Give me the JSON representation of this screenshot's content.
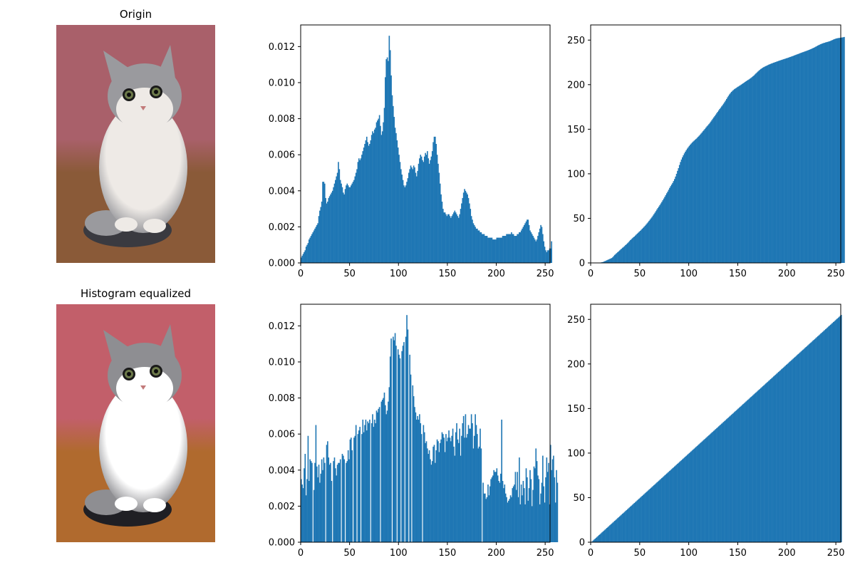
{
  "figure": {
    "images": [
      {
        "title": "Origin",
        "subject": "cat-photo"
      },
      {
        "title": "Histogram equalized",
        "subject": "cat-photo-equalized"
      }
    ],
    "bar_color": "#1f77b4",
    "palette": {
      "wall": "#a9606a",
      "floor": "#8a5a38",
      "fur_white": "#eeeae6",
      "fur_gray": "#9a9a9e",
      "fur_dark": "#3a3a40"
    },
    "palette_equalized": {
      "wall": "#c25f6a",
      "floor": "#b06a2e",
      "fur_white": "#ffffff",
      "fur_gray": "#8e8e92",
      "fur_dark": "#1f1f24"
    }
  },
  "chart_data": [
    {
      "type": "bar",
      "id": "hist-original",
      "title": "",
      "xlabel": "",
      "ylabel": "",
      "xlim": [
        0,
        255
      ],
      "ylim": [
        0,
        0.0132
      ],
      "xticks": [
        0,
        50,
        100,
        150,
        200,
        250
      ],
      "yticks": [
        0.0,
        0.002,
        0.004,
        0.006,
        0.008,
        0.01,
        0.012
      ],
      "ytick_labels": [
        "0.000",
        "0.002",
        "0.004",
        "0.006",
        "0.008",
        "0.010",
        "0.012"
      ],
      "grid": false,
      "bins": 256,
      "values": [
        0.0003,
        0.0004,
        0.0005,
        0.0006,
        0.0007,
        0.0009,
        0.001,
        0.0011,
        0.0013,
        0.0014,
        0.0015,
        0.0016,
        0.0017,
        0.0018,
        0.0019,
        0.002,
        0.0021,
        0.0022,
        0.0026,
        0.0029,
        0.0031,
        0.0034,
        0.0045,
        0.0045,
        0.0044,
        0.0036,
        0.0033,
        0.0034,
        0.0036,
        0.0037,
        0.0038,
        0.0039,
        0.004,
        0.0042,
        0.0044,
        0.0046,
        0.0048,
        0.005,
        0.0056,
        0.0052,
        0.0046,
        0.0044,
        0.0042,
        0.0039,
        0.0038,
        0.0041,
        0.0043,
        0.0044,
        0.0043,
        0.0042,
        0.0042,
        0.0043,
        0.0044,
        0.0045,
        0.0046,
        0.0048,
        0.005,
        0.0052,
        0.0056,
        0.0058,
        0.0057,
        0.0058,
        0.006,
        0.0062,
        0.0064,
        0.0066,
        0.0068,
        0.007,
        0.0067,
        0.0065,
        0.0066,
        0.0068,
        0.0071,
        0.0073,
        0.0072,
        0.0074,
        0.0075,
        0.0078,
        0.0079,
        0.008,
        0.0082,
        0.0076,
        0.0071,
        0.0073,
        0.0078,
        0.0086,
        0.0103,
        0.0113,
        0.0114,
        0.0112,
        0.0126,
        0.0118,
        0.0104,
        0.0093,
        0.0087,
        0.0081,
        0.0075,
        0.0072,
        0.0068,
        0.0064,
        0.006,
        0.0056,
        0.0052,
        0.0049,
        0.0046,
        0.0043,
        0.0042,
        0.0043,
        0.0045,
        0.0047,
        0.005,
        0.0052,
        0.0054,
        0.0053,
        0.0052,
        0.0054,
        0.0053,
        0.005,
        0.0048,
        0.0051,
        0.0055,
        0.0058,
        0.006,
        0.0059,
        0.0057,
        0.0056,
        0.0059,
        0.0061,
        0.006,
        0.0062,
        0.0058,
        0.0055,
        0.0057,
        0.0059,
        0.0062,
        0.0067,
        0.007,
        0.007,
        0.0066,
        0.006,
        0.0055,
        0.005,
        0.0044,
        0.0038,
        0.0034,
        0.003,
        0.0028,
        0.0028,
        0.0027,
        0.0026,
        0.0027,
        0.0027,
        0.0026,
        0.0025,
        0.0026,
        0.0027,
        0.0028,
        0.0029,
        0.0028,
        0.0027,
        0.0026,
        0.0025,
        0.0027,
        0.003,
        0.0033,
        0.0036,
        0.0039,
        0.0041,
        0.004,
        0.0039,
        0.0038,
        0.0036,
        0.0033,
        0.003,
        0.0026,
        0.0024,
        0.0022,
        0.0021,
        0.002,
        0.0019,
        0.0019,
        0.0018,
        0.0018,
        0.0017,
        0.0017,
        0.0016,
        0.0016,
        0.0016,
        0.0015,
        0.0015,
        0.0015,
        0.0014,
        0.0014,
        0.0014,
        0.0014,
        0.0014,
        0.0013,
        0.0013,
        0.0013,
        0.0013,
        0.0014,
        0.0014,
        0.0014,
        0.0014,
        0.0014,
        0.0014,
        0.0015,
        0.0015,
        0.0015,
        0.0015,
        0.0016,
        0.0016,
        0.0016,
        0.0016,
        0.0016,
        0.0017,
        0.0016,
        0.0016,
        0.0015,
        0.0015,
        0.0015,
        0.0016,
        0.0016,
        0.0017,
        0.0017,
        0.0018,
        0.0019,
        0.002,
        0.0021,
        0.0022,
        0.0023,
        0.0024,
        0.0024,
        0.0021,
        0.0018,
        0.0017,
        0.0016,
        0.0015,
        0.0014,
        0.0013,
        0.0012,
        0.0013,
        0.0015,
        0.0017,
        0.0019,
        0.0021,
        0.002,
        0.0016,
        0.0012,
        0.0009,
        0.0007,
        0.0006,
        0.0007,
        0.0007,
        0.0008,
        0.0008,
        0.0012
      ]
    },
    {
      "type": "bar",
      "id": "cdf-original",
      "title": "",
      "xlabel": "",
      "ylabel": "",
      "xlim": [
        0,
        255
      ],
      "ylim": [
        0,
        267
      ],
      "xticks": [
        0,
        50,
        100,
        150,
        200,
        250
      ],
      "yticks": [
        0,
        50,
        100,
        150,
        200,
        250
      ],
      "ytick_labels": [
        "0",
        "50",
        "100",
        "150",
        "200",
        "250"
      ],
      "grid": false,
      "bins": 256,
      "values": [
        0,
        0,
        0,
        0,
        0,
        0,
        0,
        0,
        0.2,
        0.3,
        0.5,
        0.8,
        1,
        1.5,
        2,
        2.5,
        3,
        3.5,
        4,
        4.5,
        5,
        5.5,
        6.5,
        7.8,
        9,
        10,
        11,
        12,
        13,
        14,
        15,
        16,
        17,
        17.9,
        18.9,
        20,
        21,
        22,
        23.1,
        24.5,
        25.6,
        26.7,
        27.7,
        28.7,
        29.6,
        30.7,
        31.8,
        32.9,
        33.9,
        35,
        36,
        37.1,
        38.3,
        39.4,
        40.6,
        41.8,
        43,
        44.4,
        45.7,
        47.2,
        48.6,
        50,
        51.5,
        53.1,
        54.7,
        56.4,
        58.1,
        59.9,
        61.6,
        63.2,
        64.9,
        66.7,
        68.4,
        70.3,
        72.2,
        74.1,
        76.1,
        78.1,
        80,
        82.1,
        84.2,
        86.1,
        87.9,
        89.7,
        91.8,
        94.1,
        96.9,
        100,
        103.3,
        106.3,
        109.9,
        113.2,
        116,
        118.5,
        120.8,
        122.9,
        124.8,
        126.6,
        128.3,
        129.8,
        131.3,
        132.6,
        133.9,
        135.1,
        136.2,
        137.2,
        138.2,
        139.2,
        140.3,
        141.4,
        142.6,
        143.8,
        145.1,
        146.4,
        147.8,
        149.1,
        150.4,
        151.8,
        153.2,
        154.4,
        155.7,
        157.1,
        158.6,
        160.2,
        161.8,
        163.3,
        164.8,
        166.4,
        168,
        169.5,
        171.1,
        172.7,
        174.1,
        175.6,
        177.1,
        178.7,
        180.3,
        182.1,
        183.9,
        185.8,
        187.5,
        189.1,
        190.6,
        191.9,
        193,
        194,
        194.9,
        195.7,
        196.4,
        197.2,
        197.9,
        198.6,
        199.3,
        200.1,
        200.8,
        201.6,
        202.3,
        203.1,
        203.9,
        204.6,
        205.3,
        206,
        206.8,
        207.6,
        208.5,
        209.4,
        210.4,
        211.5,
        212.6,
        213.7,
        214.7,
        215.7,
        216.7,
        217.6,
        218.3,
        219.1,
        219.7,
        220.3,
        220.8,
        221.3,
        221.9,
        222.4,
        222.9,
        223.3,
        223.8,
        224.2,
        224.6,
        225,
        225.4,
        225.8,
        226.2,
        226.6,
        227,
        227.4,
        227.7,
        228.1,
        228.5,
        228.8,
        229.2,
        229.6,
        229.9,
        230.3,
        230.7,
        231.1,
        231.5,
        231.9,
        232.3,
        232.7,
        233.2,
        233.6,
        234,
        234.4,
        234.8,
        235.3,
        235.7,
        236.1,
        236.5,
        236.9,
        237.3,
        237.7,
        238.1,
        238.5,
        239,
        239.4,
        239.9,
        240.4,
        240.9,
        241.4,
        242,
        242.6,
        243.2,
        243.8,
        244.4,
        244.9,
        245.4,
        245.9,
        246.3,
        246.7,
        247,
        247.4,
        247.7,
        248,
        248.3,
        248.7,
        249.1,
        249.6,
        250.1,
        250.6,
        251.1,
        251.5,
        251.8,
        252.1,
        252.3,
        252.4,
        252.6,
        252.8,
        253,
        253.2,
        253.5
      ]
    },
    {
      "type": "bar",
      "id": "hist-equalized",
      "title": "",
      "xlabel": "",
      "ylabel": "",
      "xlim": [
        0,
        255
      ],
      "ylim": [
        0,
        0.0132
      ],
      "xticks": [
        0,
        50,
        100,
        150,
        200,
        250
      ],
      "yticks": [
        0.0,
        0.002,
        0.004,
        0.006,
        0.008,
        0.01,
        0.012
      ],
      "ytick_labels": [
        "0.000",
        "0.002",
        "0.004",
        "0.006",
        "0.008",
        "0.010",
        "0.012"
      ],
      "grid": false,
      "bins": 256,
      "values": [
        0.0035,
        0.0032,
        0.003,
        0.0041,
        0.0049,
        0.0026,
        0.0035,
        0.0059,
        0.0034,
        0.0046,
        0.0045,
        0.0044,
        0,
        0.0029,
        0.0044,
        0.0065,
        0.0042,
        0.0036,
        0.0043,
        0.0033,
        0.0038,
        0.0046,
        0.004,
        0.0047,
        0.0044,
        0,
        0.0054,
        0.0056,
        0.0047,
        0.0043,
        0.0044,
        0.0034,
        0,
        0.0045,
        0.0047,
        0.0041,
        0.0037,
        0.0043,
        0.0044,
        0.0044,
        0.0046,
        0,
        0.0049,
        0.0048,
        0.0046,
        0,
        0.0044,
        0.0045,
        0.0051,
        0.0046,
        0.0057,
        0.0058,
        0.0051,
        0,
        0.0058,
        0.0059,
        0.0065,
        0,
        0.006,
        0.0062,
        0.0064,
        0,
        0.006,
        0.0068,
        0.0061,
        0.0065,
        0.0068,
        0.0062,
        0.0067,
        0.0066,
        0.0068,
        0,
        0.0066,
        0.0071,
        0.0064,
        0.0068,
        0.0066,
        0.0073,
        0.0072,
        0.0074,
        0.0075,
        0,
        0.0078,
        0.0079,
        0.008,
        0.0083,
        0.0076,
        0.0071,
        0.0073,
        0.0078,
        0.0086,
        0.0103,
        0.0113,
        0,
        0.0114,
        0.0112,
        0.0116,
        0.0109,
        0,
        0.0107,
        0.0104,
        0.0102,
        0,
        0.0106,
        0.0109,
        0.0111,
        0,
        0.0114,
        0.0126,
        0.0118,
        0,
        0.0104,
        0.0093,
        0,
        0.0087,
        0.0081,
        0.0075,
        0.0072,
        0.0068,
        0.007,
        0.0068,
        0.0071,
        0.0066,
        0.006,
        0,
        0.0065,
        0.0061,
        0.0055,
        0.0056,
        0.0052,
        0.0049,
        0.0051,
        0.0046,
        0.0043,
        0.0045,
        0.0053,
        0.0054,
        0.0044,
        0.0051,
        0.0057,
        0.0056,
        0.005,
        0.0055,
        0.0057,
        0.0061,
        0.006,
        0.0058,
        0.005,
        0.006,
        0.0056,
        0.0058,
        0.0062,
        0.0058,
        0.0056,
        0.0059,
        0.0063,
        0.0053,
        0.0048,
        0.0061,
        0.0066,
        0.0057,
        0.0055,
        0.0063,
        0.0048,
        0.0059,
        0.0066,
        0.007,
        0.0058,
        0.0071,
        0.0058,
        0.006,
        0.0065,
        0.0063,
        0.0063,
        0.0071,
        0.0066,
        0.0052,
        0.0059,
        0.0071,
        0.0065,
        0.006,
        0.0052,
        0.0053,
        0.0063,
        0.0052,
        0,
        0.0033,
        0.0027,
        0.0027,
        0.0024,
        0.0025,
        0.0032,
        0.0026,
        0.0031,
        0.0035,
        0.0036,
        0.0037,
        0.004,
        0.0039,
        0.0039,
        0.0041,
        0.0037,
        0.0034,
        0.0033,
        0.0038,
        0.0068,
        0.0034,
        0.003,
        0.0032,
        0.0027,
        0.0025,
        0.0022,
        0.0023,
        0.0024,
        0.0026,
        0.0025,
        0.003,
        0.0031,
        0.0032,
        0.0039,
        0.0029,
        0.0039,
        0.0025,
        0.0047,
        0.0021,
        0.0032,
        0.0026,
        0.0034,
        0.003,
        0.0021,
        0.0041,
        0.0036,
        0.0023,
        0.003,
        0.004,
        0.0035,
        0.002,
        0.0029,
        0.0042,
        0.0041,
        0.0052,
        0.0045,
        0.0037,
        0.0035,
        0.0021,
        0.0027,
        0.0033,
        0.0048,
        0.0031,
        0.0022,
        0.0036,
        0.0047,
        0.0039,
        0.0044,
        0.0021,
        0.0054,
        0.004,
        0.0046,
        0.0048,
        0.0036,
        0.0022,
        0.004,
        0.0033
      ]
    },
    {
      "type": "bar",
      "id": "cdf-equalized",
      "title": "",
      "xlabel": "",
      "ylabel": "",
      "xlim": [
        0,
        255
      ],
      "ylim": [
        0,
        267
      ],
      "xticks": [
        0,
        50,
        100,
        150,
        200,
        250
      ],
      "yticks": [
        0,
        50,
        100,
        150,
        200,
        250
      ],
      "ytick_labels": [
        "0",
        "50",
        "100",
        "150",
        "200",
        "250"
      ],
      "grid": false,
      "bins": 256,
      "values": "identity"
    }
  ]
}
